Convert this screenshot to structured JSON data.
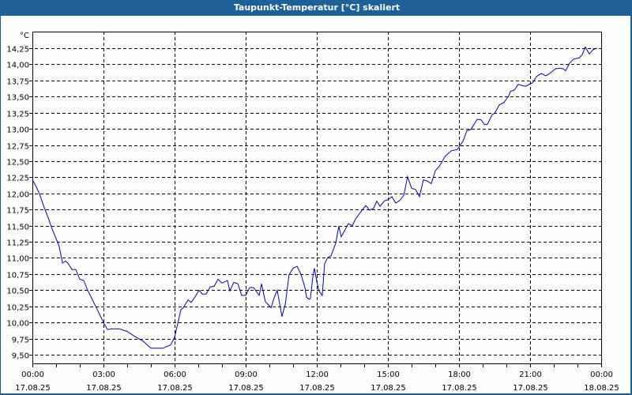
{
  "window": {
    "title": "Taupunkt-Temperatur [°C] skaliert",
    "colors": {
      "titlebar": "#1d6198",
      "border": "#1b5f97",
      "line": "#0000c8",
      "grid": "#000000"
    }
  },
  "chart_data": {
    "type": "line",
    "title": "Taupunkt-Temperatur [°C] skaliert",
    "xlabel": "",
    "ylabel": "°C",
    "unit_label": "°C",
    "ylim": [
      9.37,
      14.5
    ],
    "xlim_hours": [
      0,
      24
    ],
    "grid": true,
    "legend": null,
    "y_ticks": [
      "9,50",
      "9,75",
      "10,00",
      "10,25",
      "10,50",
      "10,75",
      "11,00",
      "11,25",
      "11,50",
      "11,75",
      "12,00",
      "12,25",
      "12,50",
      "12,75",
      "13,00",
      "13,25",
      "13,50",
      "13,75",
      "14,00",
      "14,25"
    ],
    "y_tick_values": [
      9.5,
      9.75,
      10.0,
      10.25,
      10.5,
      10.75,
      11.0,
      11.25,
      11.5,
      11.75,
      12.0,
      12.25,
      12.5,
      12.75,
      13.0,
      13.25,
      13.5,
      13.75,
      14.0,
      14.25
    ],
    "x_ticks": [
      {
        "time": "00:00",
        "date": "17.08.25",
        "hour": 0
      },
      {
        "time": "03:00",
        "date": "17.08.25",
        "hour": 3
      },
      {
        "time": "06:00",
        "date": "17.08.25",
        "hour": 6
      },
      {
        "time": "09:00",
        "date": "17.08.25",
        "hour": 9
      },
      {
        "time": "12:00",
        "date": "17.08.25",
        "hour": 12
      },
      {
        "time": "15:00",
        "date": "17.08.25",
        "hour": 15
      },
      {
        "time": "18:00",
        "date": "17.08.25",
        "hour": 18
      },
      {
        "time": "21:00",
        "date": "17.08.25",
        "hour": 21
      },
      {
        "time": "00:00",
        "date": "18.08.25",
        "hour": 24
      }
    ],
    "series": [
      {
        "name": "Taupunkt-Temperatur",
        "x_hours": [
          0.0,
          0.17,
          0.33,
          0.5,
          0.67,
          0.83,
          1.0,
          1.13,
          1.27,
          1.4,
          1.5,
          1.67,
          1.83,
          2.0,
          2.17,
          2.33,
          2.67,
          3.0,
          3.17,
          3.33,
          3.67,
          4.0,
          4.33,
          4.67,
          5.0,
          5.17,
          5.5,
          5.83,
          6.0,
          6.27,
          6.37,
          6.57,
          6.7,
          6.87,
          7.03,
          7.17,
          7.33,
          7.5,
          7.67,
          7.83,
          8.0,
          8.23,
          8.33,
          8.5,
          8.67,
          8.83,
          9.0,
          9.17,
          9.33,
          9.57,
          9.67,
          9.83,
          10.07,
          10.2,
          10.33,
          10.53,
          10.67,
          10.83,
          11.0,
          11.17,
          11.33,
          11.5,
          11.57,
          11.67,
          11.73,
          11.83,
          11.9,
          12.0,
          12.1,
          12.23,
          12.33,
          12.47,
          12.6,
          12.8,
          12.93,
          13.03,
          13.17,
          13.33,
          13.5,
          13.63,
          13.97,
          14.07,
          14.23,
          14.4,
          14.53,
          14.67,
          14.87,
          15.0,
          15.17,
          15.33,
          15.5,
          15.67,
          15.83,
          16.0,
          16.17,
          16.33,
          16.5,
          16.67,
          16.83,
          17.0,
          17.17,
          17.43,
          17.67,
          17.93,
          18.17,
          18.33,
          18.5,
          18.77,
          18.93,
          19.07,
          19.2,
          19.4,
          19.5,
          19.7,
          19.9,
          20.1,
          20.17,
          20.33,
          20.5,
          20.67,
          20.83,
          21.0,
          21.1,
          21.27,
          21.47,
          21.67,
          21.83,
          22.07,
          22.23,
          22.4,
          22.5,
          22.67,
          22.83,
          23.07,
          23.2,
          23.33,
          23.5,
          23.67,
          23.83
        ],
        "values": [
          12.21,
          12.1,
          11.96,
          11.78,
          11.62,
          11.45,
          11.3,
          11.18,
          10.92,
          10.95,
          10.92,
          10.82,
          10.82,
          10.67,
          10.65,
          10.5,
          10.25,
          10.0,
          9.89,
          9.9,
          9.9,
          9.86,
          9.78,
          9.71,
          9.6,
          9.6,
          9.6,
          9.65,
          9.77,
          10.2,
          10.23,
          10.35,
          10.31,
          10.4,
          10.5,
          10.44,
          10.44,
          10.55,
          10.56,
          10.67,
          10.61,
          10.65,
          10.49,
          10.62,
          10.6,
          10.42,
          10.42,
          10.54,
          10.54,
          10.42,
          10.6,
          10.32,
          10.23,
          10.38,
          10.5,
          10.09,
          10.28,
          10.74,
          10.84,
          10.87,
          10.75,
          10.54,
          10.39,
          10.36,
          10.37,
          10.7,
          10.84,
          10.63,
          10.48,
          10.42,
          10.91,
          11.01,
          11.03,
          11.23,
          11.49,
          11.33,
          11.42,
          11.53,
          11.5,
          11.6,
          11.77,
          11.81,
          11.74,
          11.77,
          11.88,
          11.8,
          11.89,
          11.9,
          11.95,
          11.85,
          11.89,
          11.97,
          12.26,
          12.08,
          12.06,
          11.95,
          12.21,
          12.19,
          12.15,
          12.35,
          12.42,
          12.58,
          12.66,
          12.68,
          12.81,
          12.97,
          12.99,
          13.15,
          13.14,
          13.07,
          13.07,
          13.22,
          13.24,
          13.37,
          13.41,
          13.51,
          13.58,
          13.6,
          13.69,
          13.67,
          13.66,
          13.7,
          13.71,
          13.81,
          13.86,
          13.82,
          13.86,
          13.93,
          13.94,
          13.93,
          13.9,
          14.02,
          14.08,
          14.1,
          14.15,
          14.27,
          14.16,
          14.23,
          14.25
        ]
      }
    ]
  }
}
